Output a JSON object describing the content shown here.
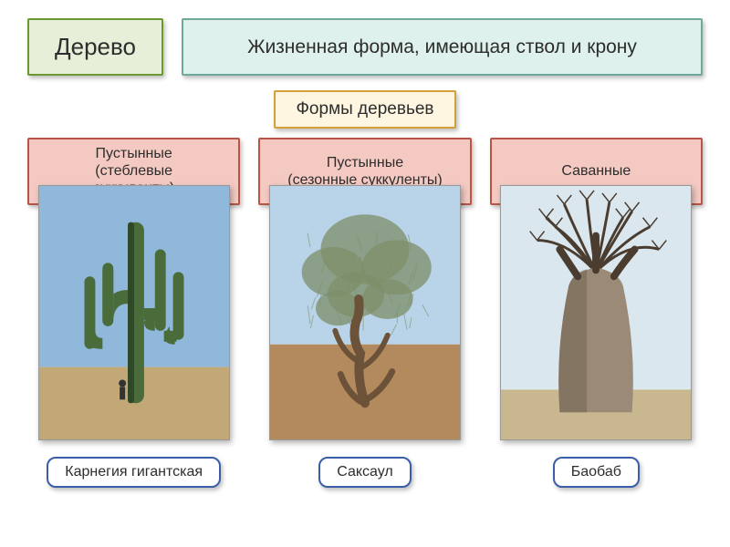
{
  "colors": {
    "title_bg": "#e6f0d8",
    "title_border": "#6a9a2f",
    "desc_bg": "#dff1ec",
    "desc_border": "#6ea99a",
    "subtitle_bg": "#fef6e0",
    "subtitle_border": "#d4a039",
    "category_bg": "#f3c9c2",
    "category_border": "#b85544",
    "caption_bg": "#ffffff",
    "caption_border": "#3b5ea8",
    "text_color": "#2d2d2d"
  },
  "header": {
    "title": "Дерево",
    "description": "Жизненная форма, имеющая ствол и крону"
  },
  "subtitle": "Формы деревьев",
  "categories": [
    {
      "label": "Пустынные\n(стеблевые\nсуккуленты)"
    },
    {
      "label": "Пустынные\n(сезонные суккуленты)"
    },
    {
      "label": "Саванные"
    }
  ],
  "plants": [
    {
      "caption": "Карнегия гигантская",
      "image": {
        "type": "saguaro",
        "sky": "#8fb8da",
        "ground": "#c2a877",
        "plant": "#4a6b3a",
        "plant_dark": "#2f4826"
      }
    },
    {
      "caption": "Саксаул",
      "image": {
        "type": "saxaul",
        "sky": "#b9d4e8",
        "ground": "#b38a5e",
        "foliage": "#7d8f6a",
        "trunk": "#6b5238"
      }
    },
    {
      "caption": "Баобаб",
      "image": {
        "type": "baobab",
        "sky": "#dbe7ef",
        "ground": "#c9b88f",
        "trunk": "#9b8a77",
        "trunk_shadow": "#6e5f4e",
        "branches": "#4a3d30"
      }
    }
  ]
}
